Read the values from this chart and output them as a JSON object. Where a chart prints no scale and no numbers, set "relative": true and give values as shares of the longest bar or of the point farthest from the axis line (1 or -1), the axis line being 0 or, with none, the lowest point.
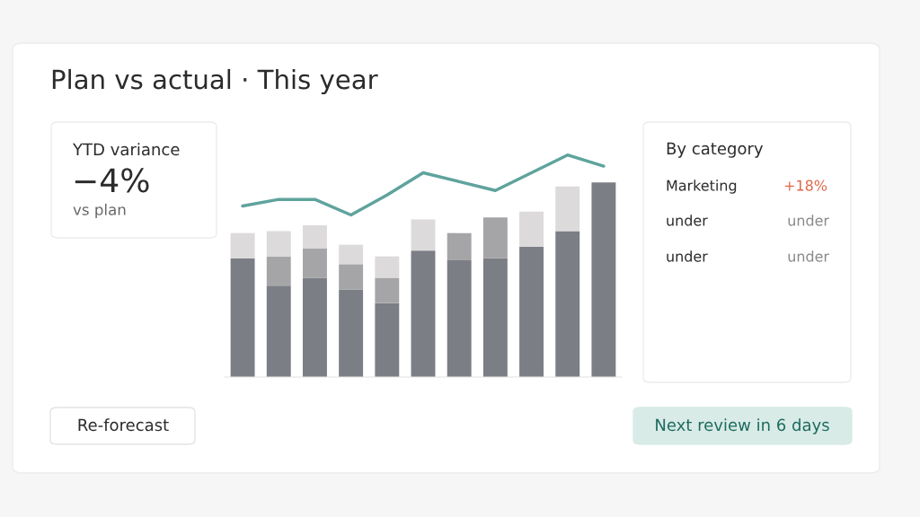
{
  "chart_data": [
    {
      "type": "bar",
      "title": "Plan vs actual · This year",
      "relative": true,
      "stacked": true,
      "categories": [
        null,
        null,
        null,
        null,
        null,
        null,
        null,
        null,
        null,
        null,
        null
      ],
      "series": [
        {
          "color": "#7b7e85",
          "values": [
            0.61,
            0.47,
            0.51,
            0.45,
            0.38,
            0.65,
            0.6,
            0.61,
            0.67,
            0.75,
            1.0
          ]
        },
        {
          "color": "#a5a5a7",
          "values": [
            0,
            0.15,
            0.15,
            0.13,
            0.13,
            0,
            0.14,
            0.21,
            0,
            0,
            0
          ]
        },
        {
          "color": "#dcdadb",
          "values": [
            0.13,
            0.13,
            0.12,
            0.1,
            0.11,
            0.16,
            0,
            0,
            0.18,
            0.23,
            0
          ]
        }
      ],
      "annotations": [
        "YTD variance",
        "−4%",
        "vs plan",
        "By category",
        "Marketing",
        "+18%",
        "under",
        "under",
        "under",
        "under",
        "Re-forecast",
        "Next review in 6 days"
      ]
    },
    {
      "type": "line",
      "relative": true,
      "categories": [
        null,
        null,
        null,
        null,
        null,
        null,
        null,
        null,
        null,
        null,
        null
      ],
      "series": [
        {
          "color": "#5fa39d",
          "values": [
            0.77,
            0.8,
            0.8,
            0.73,
            0.82,
            0.92,
            0.88,
            0.84,
            0.92,
            1.0,
            0.95
          ]
        }
      ]
    }
  ]
}
